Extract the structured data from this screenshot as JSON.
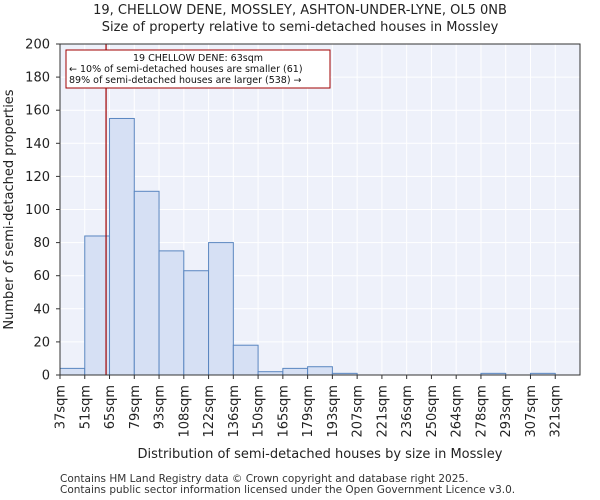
{
  "header": {
    "title_line1": "19, CHELLOW DENE, MOSSLEY, ASHTON-UNDER-LYNE, OL5 0NB",
    "title_line2": "Size of property relative to semi-detached houses in Mossley"
  },
  "footer": {
    "line1": "Contains HM Land Registry data © Crown copyright and database right 2025.",
    "line2": "Contains public sector information licensed under the Open Government Licence v3.0."
  },
  "colors": {
    "bar_fill": "#d6e0f4",
    "bar_stroke": "#5a86c0",
    "marker": "#a00000",
    "grid": "#ffffff",
    "plot_bg": "#eef1fa"
  },
  "chart_data": {
    "type": "bar",
    "title": "19, CHELLOW DENE, MOSSLEY, ASHTON-UNDER-LYNE, OL5 0NB",
    "subtitle": "Size of property relative to semi-detached houses in Mossley",
    "xlabel": "Distribution of semi-detached houses by size in Mossley",
    "ylabel": "Number of semi-detached properties",
    "ylim": [
      0,
      200
    ],
    "yticks": [
      0,
      20,
      40,
      60,
      80,
      100,
      120,
      140,
      160,
      180,
      200
    ],
    "grid": true,
    "categories": [
      "37sqm",
      "51sqm",
      "65sqm",
      "79sqm",
      "93sqm",
      "108sqm",
      "122sqm",
      "136sqm",
      "150sqm",
      "165sqm",
      "179sqm",
      "193sqm",
      "207sqm",
      "221sqm",
      "236sqm",
      "250sqm",
      "264sqm",
      "278sqm",
      "293sqm",
      "307sqm",
      "321sqm"
    ],
    "values": [
      4,
      84,
      155,
      111,
      75,
      63,
      80,
      18,
      2,
      4,
      5,
      1,
      0,
      0,
      0,
      0,
      0,
      1,
      0,
      1,
      0
    ],
    "marker": {
      "value_sqm": 63,
      "bin_position": 1.86
    },
    "annotation": {
      "line1": "19 CHELLOW DENE: 63sqm",
      "line2": "← 10% of semi-detached houses are smaller (61)",
      "line3": "89% of semi-detached houses are larger (538) →"
    }
  }
}
